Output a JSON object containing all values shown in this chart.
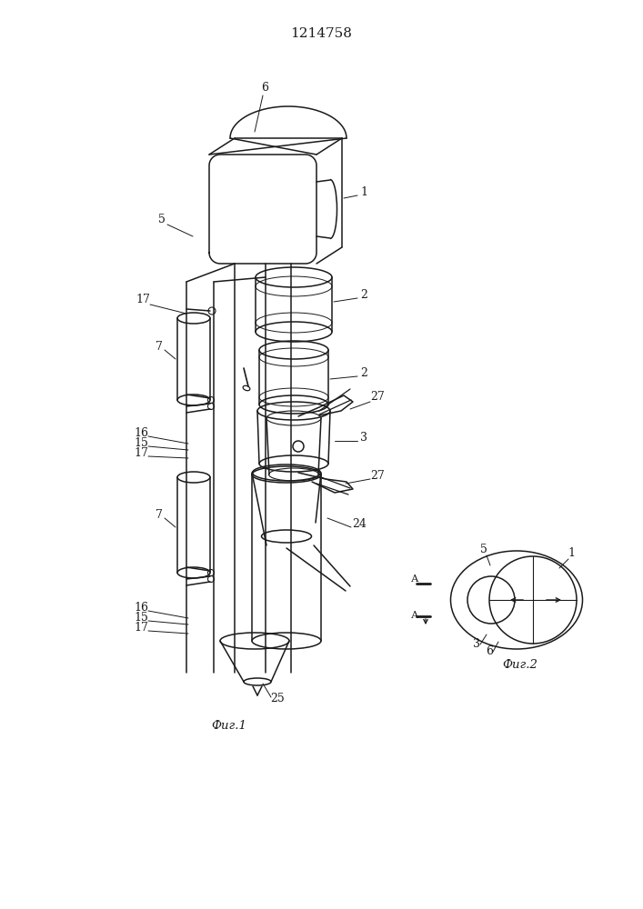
{
  "title": "1214758",
  "fig1_label": "Фиг.1",
  "fig2_label": "Фиг.2",
  "bg_color": "#ffffff",
  "line_color": "#1a1a1a"
}
